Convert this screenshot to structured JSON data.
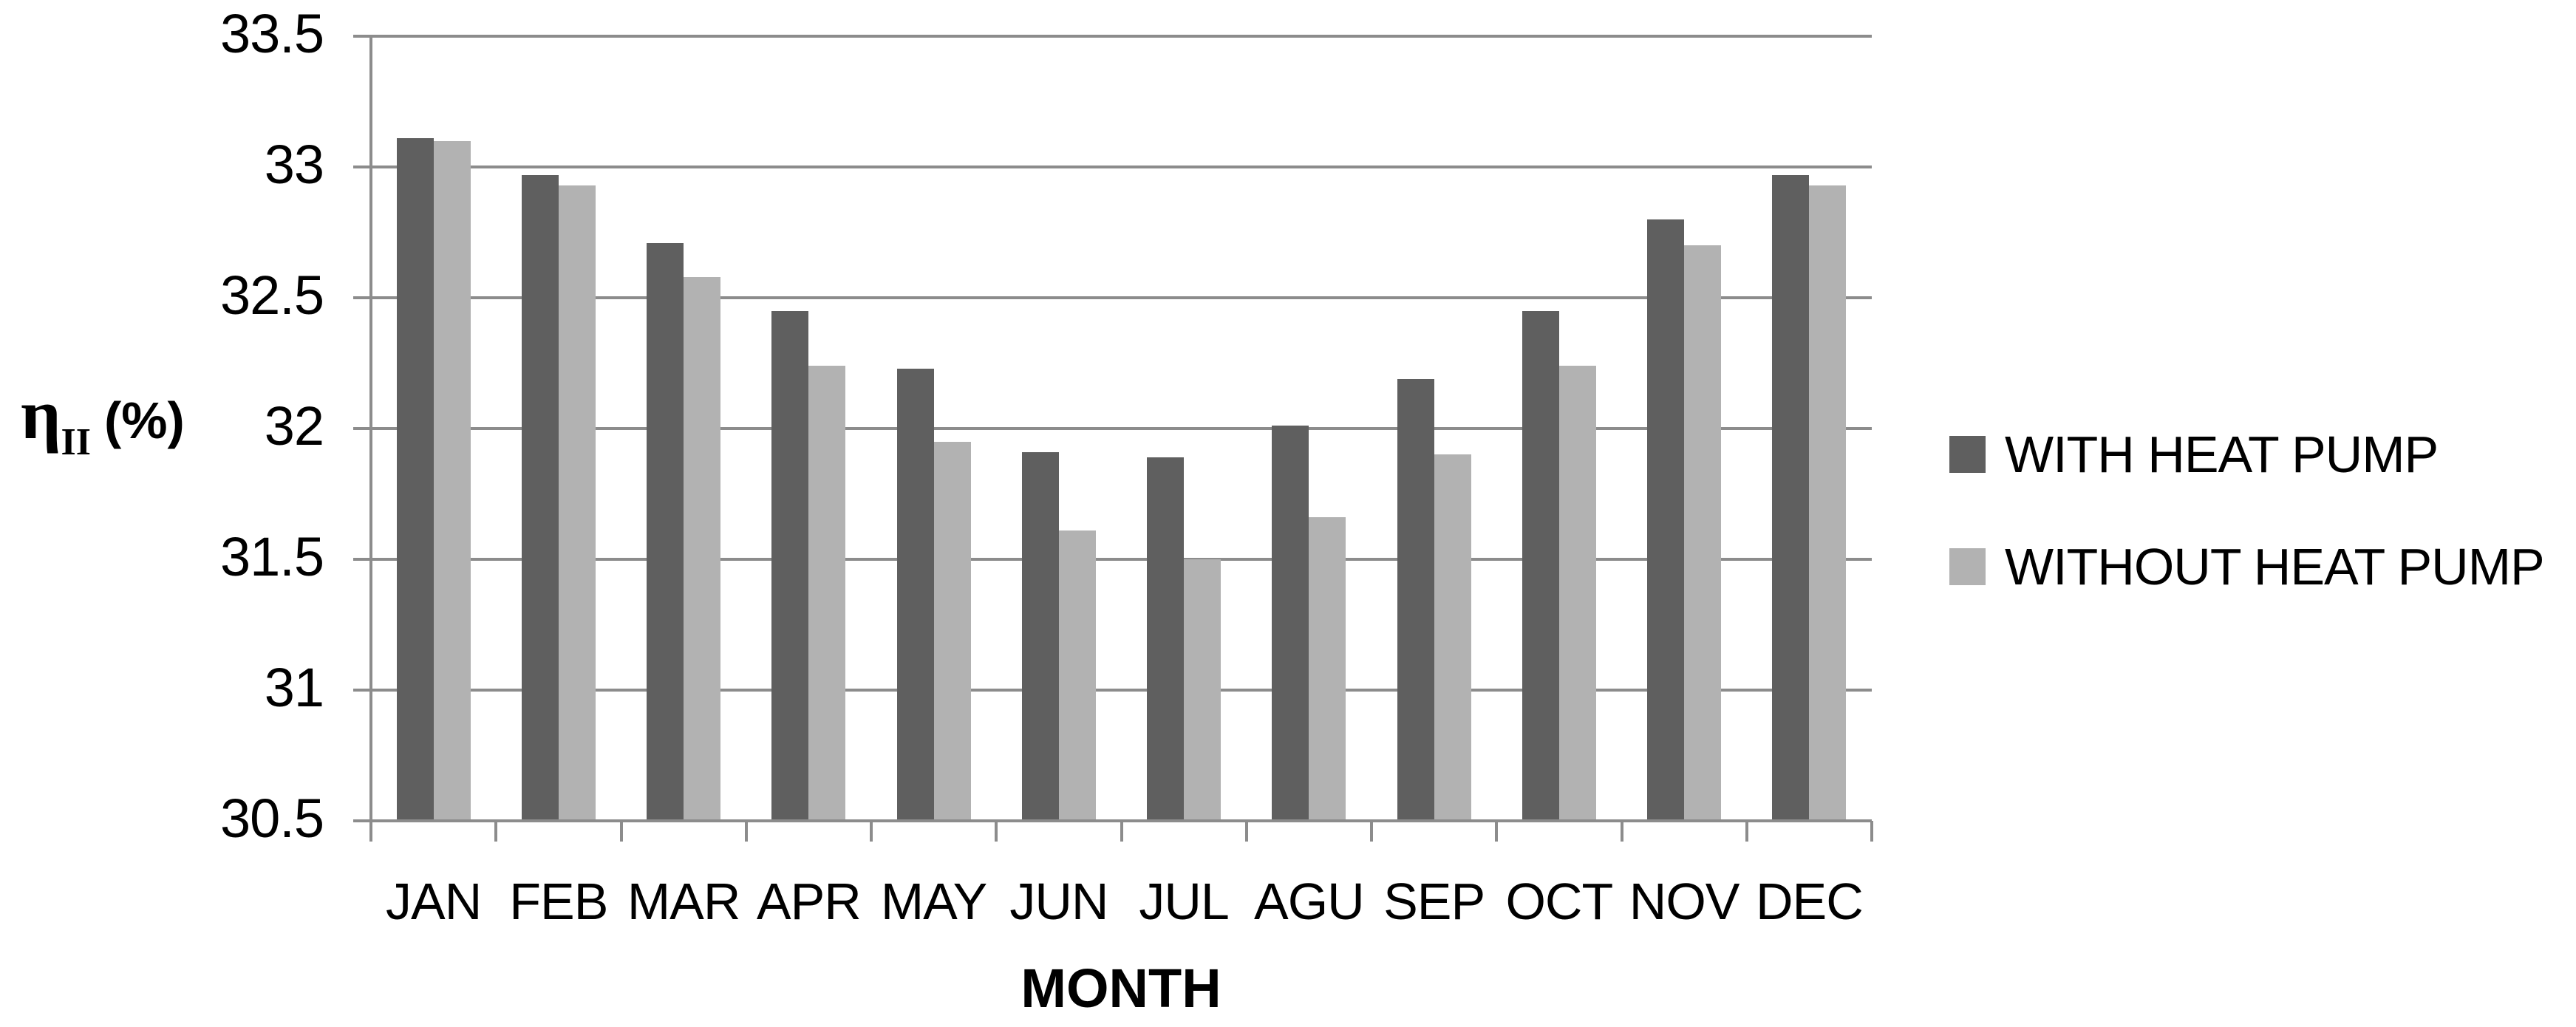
{
  "chart_data": {
    "type": "bar",
    "title": "",
    "categories": [
      "JAN",
      "FEB",
      "MAR",
      "APR",
      "MAY",
      "JUN",
      "JUL",
      "AGU",
      "SEP",
      "OCT",
      "NOV",
      "DEC"
    ],
    "series": [
      {
        "name": "WITH HEAT PUMP",
        "color": "#5F5F5F",
        "values": [
          33.11,
          32.97,
          32.71,
          32.45,
          32.23,
          31.91,
          31.89,
          32.01,
          32.19,
          32.45,
          32.8,
          32.97
        ]
      },
      {
        "name": "WITHOUT HEAT PUMP",
        "color": "#B2B2B2",
        "values": [
          33.1,
          32.93,
          32.58,
          32.24,
          31.95,
          31.61,
          31.5,
          31.66,
          31.9,
          32.24,
          32.7,
          32.93
        ]
      }
    ],
    "xlabel": "MONTH",
    "ylabel": {
      "symbol": "η",
      "subscript": "II",
      "unit": "(%)"
    },
    "ylim": [
      30.5,
      33.5
    ],
    "ytick_step": 0.5,
    "yticks": [
      "33.5",
      "33",
      "32.5",
      "32",
      "31.5",
      "31",
      "30.5"
    ],
    "grid": true,
    "legend_position": "right"
  },
  "colors": {
    "grid": "#8C8C8C",
    "axis": "#8C8C8C",
    "text": "#000000",
    "background": "#FFFFFF"
  }
}
